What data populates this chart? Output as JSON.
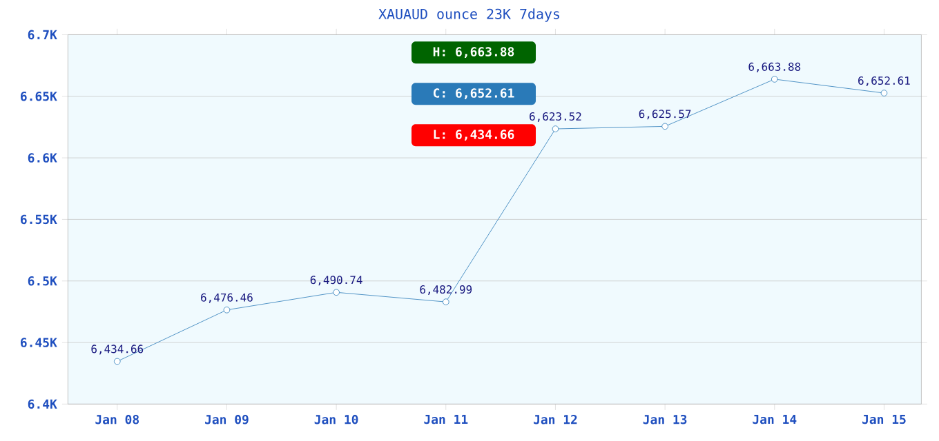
{
  "chart_data": {
    "type": "line",
    "title": "XAUAUD ounce 23K 7days",
    "categories": [
      "Jan 08",
      "Jan 09",
      "Jan 10",
      "Jan 11",
      "Jan 12",
      "Jan 13",
      "Jan 14",
      "Jan 15"
    ],
    "series": [
      {
        "color": "#2a7ab8",
        "values": [
          6434.66,
          6476.46,
          6490.74,
          6482.99,
          6623.52,
          6625.57,
          6663.88,
          6652.61
        ],
        "value_labels": [
          "6,434.66",
          "6,476.46",
          "6,490.74",
          "6,482.99",
          "6,623.52",
          "6,625.57",
          "6,663.88",
          "6,652.61"
        ]
      }
    ],
    "ylim": [
      6400,
      6700
    ],
    "yticks": [
      {
        "value": 6400,
        "label": "6.4K"
      },
      {
        "value": 6450,
        "label": "6.45K"
      },
      {
        "value": 6500,
        "label": "6.5K"
      },
      {
        "value": 6550,
        "label": "6.55K"
      },
      {
        "value": 6600,
        "label": "6.6K"
      },
      {
        "value": 6650,
        "label": "6.65K"
      },
      {
        "value": 6700,
        "label": "6.7K"
      }
    ],
    "grid": "y",
    "marker": "circle",
    "line_style": "solid",
    "annotations": [
      "H: 6,663.88",
      "C: 6,652.61",
      "L: 6,434.66"
    ]
  }
}
